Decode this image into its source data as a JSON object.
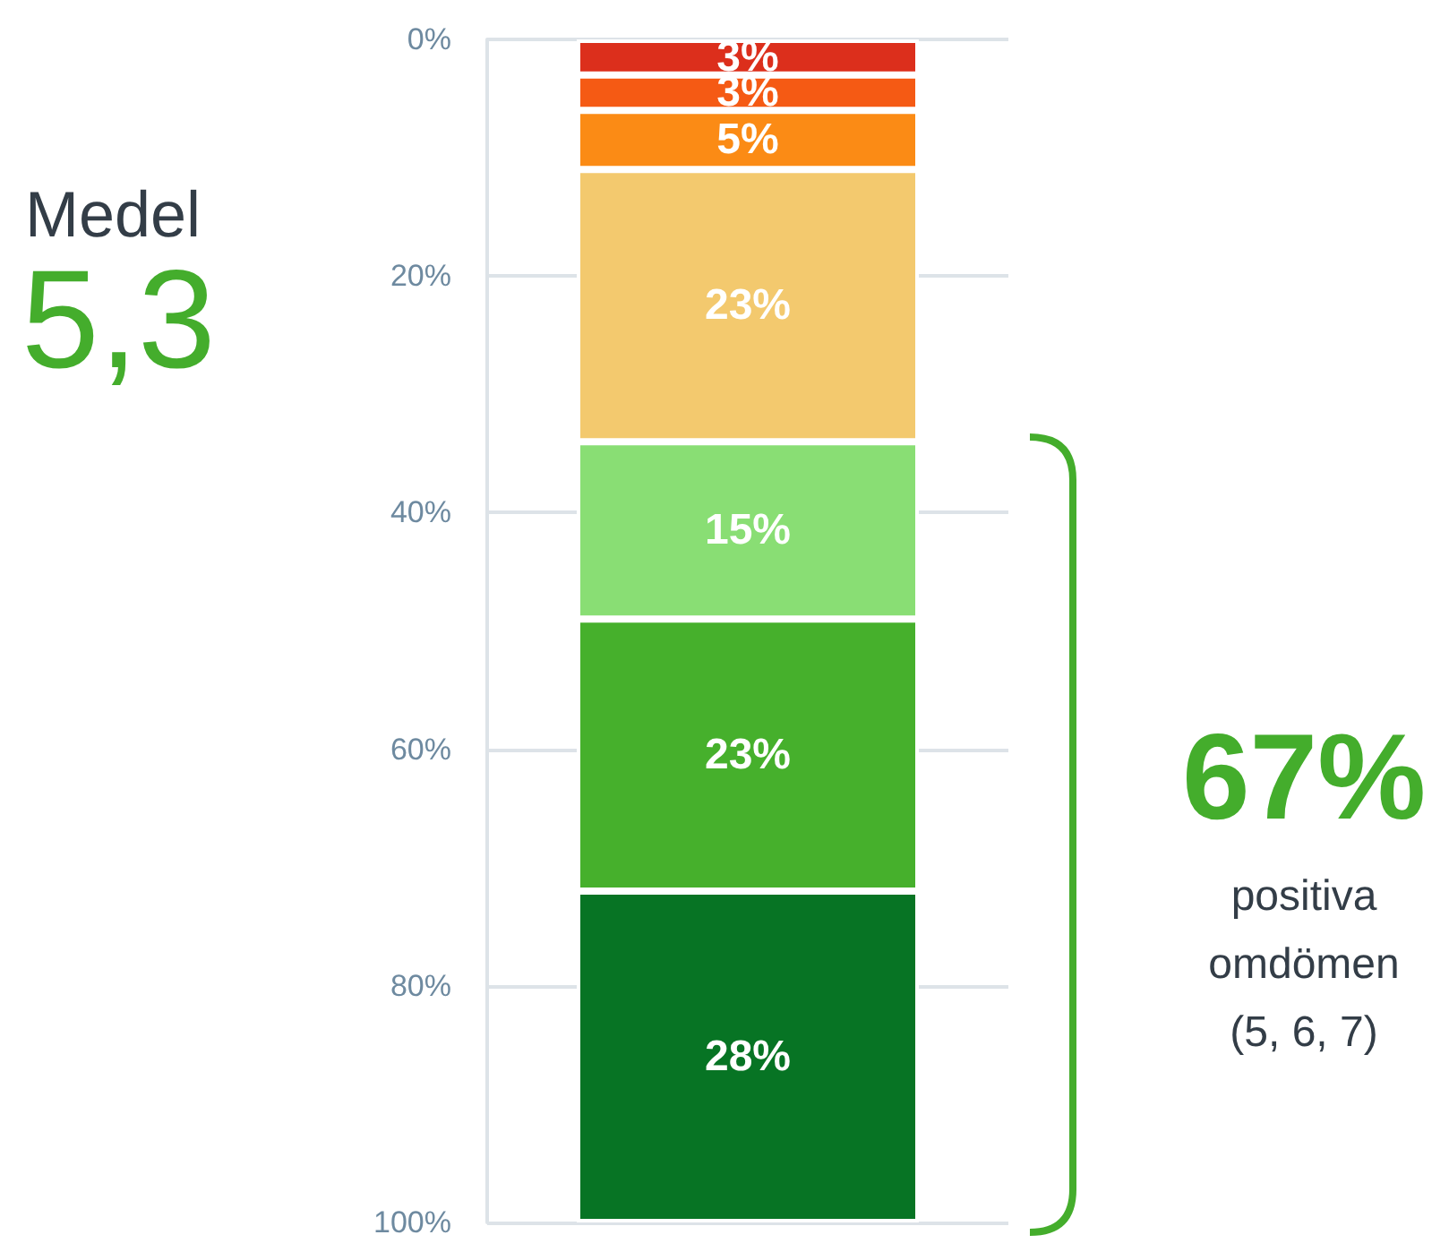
{
  "chart_data": {
    "type": "bar",
    "stacked": true,
    "categories": [
      null
    ],
    "series": [
      {
        "color": "#dc2f1c",
        "values": [
          3
        ],
        "value_labels": [
          "3%"
        ]
      },
      {
        "color": "#f55a14",
        "values": [
          3
        ],
        "value_labels": [
          "3%"
        ]
      },
      {
        "color": "#fb8b15",
        "values": [
          5
        ],
        "value_labels": [
          "5%"
        ]
      },
      {
        "color": "#f3c96e",
        "values": [
          23
        ],
        "value_labels": [
          "23%"
        ]
      },
      {
        "color": "#89de74",
        "values": [
          15
        ],
        "value_labels": [
          "15%"
        ]
      },
      {
        "color": "#46b02c",
        "values": [
          23
        ],
        "value_labels": [
          "23%"
        ]
      },
      {
        "color": "#077424",
        "values": [
          28
        ],
        "value_labels": [
          "28%"
        ]
      }
    ],
    "ylim": [
      100,
      0
    ],
    "yticks": [
      {
        "value": 0,
        "label": "0%"
      },
      {
        "value": 20,
        "label": "20%"
      },
      {
        "value": 40,
        "label": "40%"
      },
      {
        "value": 60,
        "label": "60%"
      },
      {
        "value": 80,
        "label": "80%"
      },
      {
        "value": 100,
        "label": "100%"
      }
    ],
    "grid": "y",
    "annotations": [
      "Medel",
      "5,3",
      "67%",
      "positiva omdömen (5, 6, 7)"
    ]
  }
}
